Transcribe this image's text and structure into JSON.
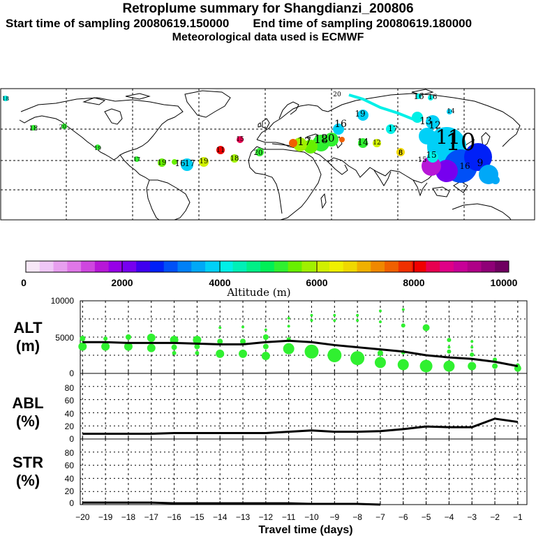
{
  "header": {
    "title": "Retroplume summary for Shangdianzi_200806",
    "start_label": "Start time of sampling 20080619.150000",
    "end_label": "End time of sampling 20080619.180000",
    "met_label": "Meteorological data used is ECMWF"
  },
  "colorbar": {
    "ticks": [
      "0",
      "2000",
      "4000",
      "6000",
      "8000",
      "10000"
    ],
    "title": "Altitude (m)",
    "colors": [
      "#f7e7f7",
      "#efc7f7",
      "#e79fef",
      "#df77e7",
      "#cf47df",
      "#b717d7",
      "#9700e7",
      "#7700ef",
      "#3f00ef",
      "#0020f7",
      "#0050f7",
      "#0080f7",
      "#00a8f7",
      "#00d0f7",
      "#00f0e7",
      "#00f0b7",
      "#00f087",
      "#00f057",
      "#30f030",
      "#68f000",
      "#a0f000",
      "#d0f000",
      "#f0f000",
      "#f0d800",
      "#f0b000",
      "#f08800",
      "#f06000",
      "#f03000",
      "#f00000",
      "#e70050",
      "#df0087",
      "#c70097",
      "#af0087",
      "#8f0077",
      "#6f0060"
    ]
  },
  "map": {
    "labels": [
      {
        "t": "16",
        "c": "#00f0e7"
      },
      {
        "t": "20",
        "c": "#00f0b7"
      },
      {
        "t": "18",
        "c": "#30f030"
      },
      {
        "t": "19",
        "c": "#30f030"
      },
      {
        "t": "17",
        "c": "#68f000"
      },
      {
        "t": "18",
        "c": "#a0f000"
      },
      {
        "t": "16",
        "c": "#00f087"
      },
      {
        "t": "17",
        "c": "#00f087"
      },
      {
        "t": "19",
        "c": "#d0f000"
      },
      {
        "t": "18",
        "c": "#a0f000"
      },
      {
        "t": "20",
        "c": "#68f000"
      },
      {
        "t": "17",
        "c": "#30f030"
      },
      {
        "t": "16",
        "c": "#00f057"
      },
      {
        "t": "14",
        "c": "#30f030"
      },
      {
        "t": "12",
        "c": "#f0d800"
      },
      {
        "t": "8",
        "c": "#f0d800"
      },
      {
        "t": "20",
        "c": "#00d0f7"
      },
      {
        "t": "19",
        "c": "#00d0f7"
      },
      {
        "t": "17",
        "c": "#00d0f7"
      },
      {
        "t": "13",
        "c": "#00d0f7"
      },
      {
        "t": "12",
        "c": "#00d0f7"
      },
      {
        "t": "11",
        "c": "#00d0f7"
      },
      {
        "t": "10",
        "c": "#00a8f7"
      },
      {
        "t": "16",
        "c": "#00f0e7"
      },
      {
        "t": "15",
        "c": "#00f0e7"
      },
      {
        "t": "14",
        "c": "#00d0f7"
      },
      {
        "t": "15",
        "c": "#00d0f7"
      },
      {
        "t": "9",
        "c": "#0080f7"
      },
      {
        "t": "16",
        "c": "#00a8f7"
      },
      {
        "t": "20",
        "c": "#00f0b7"
      },
      {
        "t": "18",
        "c": "#00d0f7"
      },
      {
        "t": "11",
        "c": "#f00000"
      },
      {
        "t": "15",
        "c": "#e70050"
      },
      {
        "t": "6",
        "c": "#f06000"
      },
      {
        "t": "19",
        "c": "#00f057"
      }
    ]
  },
  "chart_data": [
    {
      "type": "scatter",
      "title": "ALT (m)",
      "ylabel": "ALT (m)",
      "ylim": [
        0,
        10000
      ],
      "yticks": [
        "0",
        "5000",
        "10000"
      ],
      "median_line_x": [
        -20,
        -19,
        -18,
        -17,
        -16,
        -15,
        -14,
        -13,
        -12,
        -11,
        -10,
        -9,
        -8,
        -7,
        -6,
        -5,
        -4,
        -3,
        -2,
        -1
      ],
      "median_line_y": [
        4300,
        4300,
        4200,
        4200,
        4200,
        4100,
        4000,
        4000,
        4300,
        4500,
        4300,
        3900,
        3600,
        3300,
        3000,
        2500,
        2200,
        2000,
        1600,
        1000
      ],
      "marker_color": "#30f030",
      "points": [
        {
          "x": -20,
          "y": 3700,
          "r": 6
        },
        {
          "x": -20,
          "y": 4800,
          "r": 4
        },
        {
          "x": -19,
          "y": 3700,
          "r": 6
        },
        {
          "x": -19,
          "y": 4800,
          "r": 3
        },
        {
          "x": -18,
          "y": 3700,
          "r": 6
        },
        {
          "x": -18,
          "y": 5000,
          "r": 4
        },
        {
          "x": -17,
          "y": 3500,
          "r": 6
        },
        {
          "x": -17,
          "y": 4900,
          "r": 6
        },
        {
          "x": -16,
          "y": 3600,
          "r": 4
        },
        {
          "x": -16,
          "y": 4600,
          "r": 6
        },
        {
          "x": -16,
          "y": 2800,
          "r": 3
        },
        {
          "x": -15,
          "y": 3700,
          "r": 4
        },
        {
          "x": -15,
          "y": 4600,
          "r": 6
        },
        {
          "x": -15,
          "y": 2800,
          "r": 3
        },
        {
          "x": -14,
          "y": 4400,
          "r": 4
        },
        {
          "x": -14,
          "y": 2700,
          "r": 6
        },
        {
          "x": -14,
          "y": 6300,
          "r": 2
        },
        {
          "x": -13,
          "y": 4400,
          "r": 4
        },
        {
          "x": -13,
          "y": 2700,
          "r": 6
        },
        {
          "x": -13,
          "y": 6400,
          "r": 2
        },
        {
          "x": -12,
          "y": 3700,
          "r": 4
        },
        {
          "x": -12,
          "y": 5000,
          "r": 4
        },
        {
          "x": -12,
          "y": 2400,
          "r": 6
        },
        {
          "x": -12,
          "y": 6000,
          "r": 2
        },
        {
          "x": -11,
          "y": 3400,
          "r": 8
        },
        {
          "x": -11,
          "y": 4700,
          "r": 3
        },
        {
          "x": -11,
          "y": 7600,
          "r": 2
        },
        {
          "x": -11,
          "y": 6500,
          "r": 2
        },
        {
          "x": -10,
          "y": 3000,
          "r": 10
        },
        {
          "x": -10,
          "y": 8000,
          "r": 2
        },
        {
          "x": -10,
          "y": 7300,
          "r": 2
        },
        {
          "x": -9,
          "y": 2500,
          "r": 10
        },
        {
          "x": -9,
          "y": 8000,
          "r": 2
        },
        {
          "x": -9,
          "y": 7300,
          "r": 2
        },
        {
          "x": -8,
          "y": 2100,
          "r": 10
        },
        {
          "x": -8,
          "y": 8000,
          "r": 2
        },
        {
          "x": -8,
          "y": 7300,
          "r": 2
        },
        {
          "x": -7,
          "y": 1500,
          "r": 8
        },
        {
          "x": -7,
          "y": 2800,
          "r": 4
        },
        {
          "x": -7,
          "y": 8600,
          "r": 2
        },
        {
          "x": -7,
          "y": 7100,
          "r": 2
        },
        {
          "x": -6,
          "y": 1200,
          "r": 8
        },
        {
          "x": -6,
          "y": 2900,
          "r": 3
        },
        {
          "x": -6,
          "y": 6600,
          "r": 3
        },
        {
          "x": -6,
          "y": 8800,
          "r": 2
        },
        {
          "x": -5,
          "y": 1000,
          "r": 9
        },
        {
          "x": -5,
          "y": 6300,
          "r": 5
        },
        {
          "x": -4,
          "y": 1000,
          "r": 8
        },
        {
          "x": -4,
          "y": 3000,
          "r": 3
        },
        {
          "x": -4,
          "y": 4600,
          "r": 3
        },
        {
          "x": -4,
          "y": 3600,
          "r": 2
        },
        {
          "x": -3,
          "y": 1000,
          "r": 6
        },
        {
          "x": -3,
          "y": 2600,
          "r": 3
        },
        {
          "x": -3,
          "y": 3600,
          "r": 2
        },
        {
          "x": -3,
          "y": 4400,
          "r": 2
        },
        {
          "x": -2,
          "y": 1000,
          "r": 4
        },
        {
          "x": -2,
          "y": 1900,
          "r": 3
        },
        {
          "x": -1,
          "y": 700,
          "r": 5
        },
        {
          "x": -1,
          "y": 1100,
          "r": 3
        }
      ]
    },
    {
      "type": "line",
      "title": "ABL (%)",
      "ylabel": "ABL (%)",
      "ylim": [
        0,
        100
      ],
      "yticks": [
        "0",
        "20",
        "40",
        "60",
        "80"
      ],
      "x": [
        -20,
        -19,
        -18,
        -17,
        -16,
        -15,
        -14,
        -13,
        -12,
        -11,
        -10,
        -9,
        -8,
        -7,
        -6,
        -5,
        -4,
        -3,
        -2,
        -1
      ],
      "y": [
        8,
        8,
        8,
        8,
        9,
        9,
        9,
        9,
        9,
        11,
        13,
        11,
        11,
        12,
        15,
        19,
        18,
        18,
        31,
        26
      ]
    },
    {
      "type": "line",
      "title": "STR (%)",
      "ylabel": "STR (%)",
      "ylim": [
        0,
        100
      ],
      "yticks": [
        "0",
        "20",
        "40",
        "60",
        "80"
      ],
      "x": [
        -20,
        -19,
        -18,
        -17,
        -16,
        -15,
        -14,
        -13,
        -12,
        -11,
        -10,
        -9,
        -8,
        -7
      ],
      "y": [
        3,
        3,
        3,
        3,
        2,
        2,
        2,
        2,
        2,
        2,
        1,
        1,
        1,
        0
      ],
      "xlabel": "Travel time (days)",
      "xticks": [
        "−20",
        "−19",
        "−18",
        "−17",
        "−16",
        "−15",
        "−14",
        "−13",
        "−12",
        "−11",
        "−10",
        "−9",
        "−8",
        "−7",
        "−6",
        "−5",
        "−4",
        "−3",
        "−2",
        "−1"
      ]
    }
  ]
}
